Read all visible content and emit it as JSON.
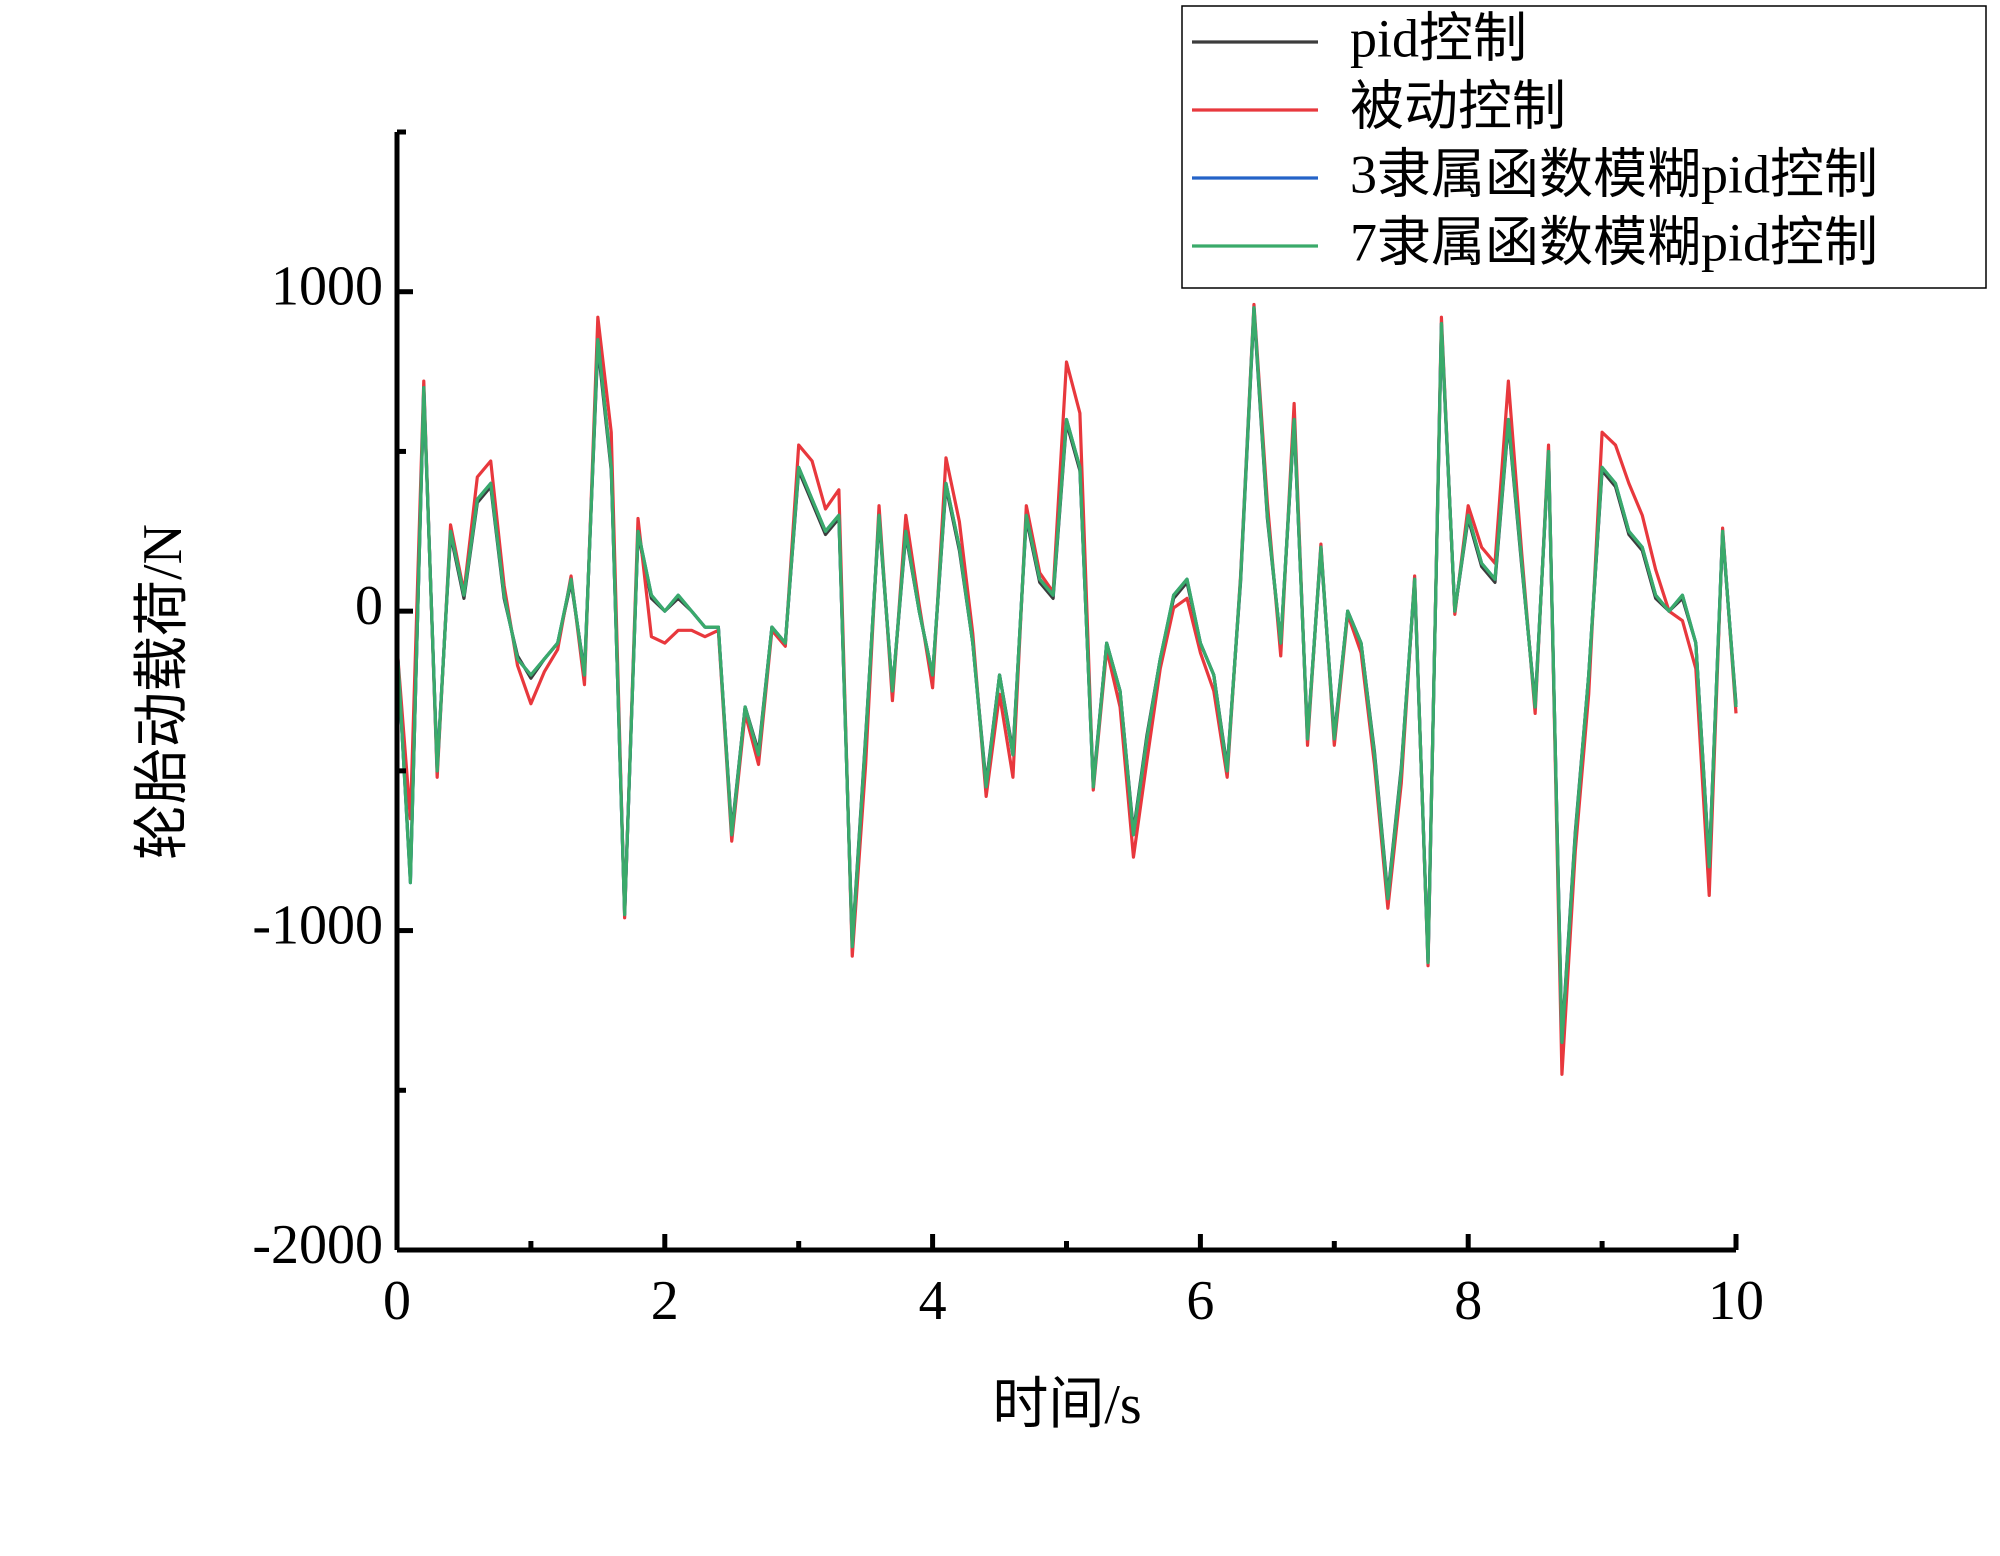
{
  "chart_data": {
    "type": "line",
    "x_label": "时间/s",
    "y_label": "轮胎动载荷/N",
    "x": [
      0,
      0.1,
      0.2,
      0.3,
      0.4,
      0.5,
      0.6,
      0.7,
      0.8,
      0.9,
      1,
      1.1,
      1.2,
      1.3,
      1.4,
      1.5,
      1.6,
      1.7,
      1.8,
      1.9,
      2,
      2.1,
      2.2,
      2.3,
      2.4,
      2.5,
      2.6,
      2.7,
      2.8,
      2.9,
      3,
      3.1,
      3.2,
      3.3,
      3.4,
      3.5,
      3.6,
      3.7,
      3.8,
      3.9,
      4,
      4.1,
      4.2,
      4.3,
      4.4,
      4.5,
      4.6,
      4.7,
      4.8,
      4.9,
      5,
      5.1,
      5.2,
      5.3,
      5.4,
      5.5,
      5.6,
      5.7,
      5.8,
      5.9,
      6,
      6.1,
      6.2,
      6.3,
      6.4,
      6.5,
      6.6,
      6.7,
      6.8,
      6.9,
      7,
      7.1,
      7.2,
      7.3,
      7.4,
      7.5,
      7.6,
      7.7,
      7.8,
      7.9,
      8,
      8.1,
      8.2,
      8.3,
      8.4,
      8.5,
      8.6,
      8.7,
      8.8,
      8.9,
      9,
      9.1,
      9.2,
      9.3,
      9.4,
      9.5,
      9.6,
      9.7,
      9.8,
      9.9,
      10
    ],
    "series": [
      {
        "name": "pid控制",
        "color": "#3c3c3c",
        "values": [
          -100,
          -840,
          690,
          -490,
          240,
          40,
          340,
          390,
          40,
          -140,
          -210,
          -150,
          -100,
          90,
          -190,
          830,
          440,
          -940,
          240,
          40,
          0,
          40,
          0,
          -50,
          -50,
          -690,
          -300,
          -440,
          -50,
          -100,
          440,
          340,
          240,
          290,
          -1040,
          -390,
          290,
          -250,
          240,
          0,
          -200,
          390,
          190,
          -100,
          -540,
          -200,
          -440,
          290,
          90,
          40,
          590,
          440,
          -540,
          -100,
          -250,
          -690,
          -390,
          -150,
          40,
          90,
          -100,
          -200,
          -490,
          90,
          940,
          290,
          -100,
          590,
          -390,
          190,
          -390,
          0,
          -100,
          -440,
          -890,
          -490,
          90,
          -1090,
          890,
          0,
          290,
          140,
          90,
          590,
          140,
          -290,
          490,
          -1340,
          -690,
          -200,
          440,
          390,
          240,
          190,
          40,
          0,
          40,
          -100,
          -790,
          240,
          -290
        ]
      },
      {
        "name": "被动控制",
        "color": "#e8383d",
        "values": [
          -110,
          -650,
          720,
          -520,
          270,
          60,
          420,
          470,
          80,
          -170,
          -290,
          -190,
          -120,
          110,
          -230,
          920,
          560,
          -960,
          290,
          -80,
          -100,
          -60,
          -60,
          -80,
          -60,
          -720,
          -320,
          -480,
          -60,
          -110,
          520,
          470,
          320,
          380,
          -1080,
          -480,
          330,
          -280,
          300,
          20,
          -240,
          480,
          280,
          -70,
          -580,
          -260,
          -520,
          330,
          120,
          60,
          780,
          620,
          -560,
          -120,
          -300,
          -770,
          -470,
          -180,
          10,
          40,
          -130,
          -250,
          -520,
          110,
          960,
          340,
          -140,
          650,
          -420,
          210,
          -420,
          -10,
          -130,
          -480,
          -930,
          -540,
          110,
          -1110,
          920,
          -10,
          330,
          200,
          150,
          720,
          180,
          -320,
          520,
          -1450,
          -750,
          -260,
          560,
          520,
          400,
          300,
          130,
          0,
          -30,
          -180,
          -890,
          260,
          -320
        ]
      },
      {
        "name": "3隶属函数模糊pid控制",
        "color": "#2563c8",
        "values": [
          -100,
          -850,
          700,
          -500,
          250,
          50,
          350,
          400,
          50,
          -150,
          -200,
          -150,
          -100,
          100,
          -200,
          850,
          450,
          -950,
          250,
          50,
          0,
          50,
          0,
          -50,
          -50,
          -700,
          -300,
          -450,
          -50,
          -100,
          450,
          350,
          250,
          300,
          -1050,
          -400,
          300,
          -250,
          250,
          0,
          -200,
          400,
          200,
          -100,
          -550,
          -200,
          -450,
          300,
          100,
          50,
          600,
          450,
          -550,
          -100,
          -250,
          -700,
          -400,
          -150,
          50,
          100,
          -100,
          -200,
          -500,
          100,
          950,
          300,
          -100,
          600,
          -400,
          200,
          -400,
          0,
          -100,
          -450,
          -900,
          -500,
          100,
          -1100,
          900,
          0,
          300,
          150,
          100,
          600,
          150,
          -300,
          500,
          -1350,
          -700,
          -200,
          450,
          400,
          250,
          200,
          50,
          0,
          50,
          -100,
          -800,
          250,
          -300
        ]
      },
      {
        "name": "7隶属函数模糊pid控制",
        "color": "#3aaa6a",
        "values": [
          -100,
          -850,
          700,
          -500,
          250,
          50,
          350,
          400,
          50,
          -150,
          -200,
          -150,
          -100,
          100,
          -200,
          850,
          450,
          -950,
          250,
          50,
          0,
          50,
          0,
          -50,
          -50,
          -700,
          -300,
          -450,
          -50,
          -100,
          450,
          350,
          250,
          300,
          -1050,
          -400,
          300,
          -250,
          250,
          0,
          -200,
          400,
          200,
          -100,
          -550,
          -200,
          -450,
          300,
          100,
          50,
          600,
          450,
          -550,
          -100,
          -250,
          -700,
          -400,
          -150,
          50,
          100,
          -100,
          -200,
          -500,
          100,
          950,
          300,
          -100,
          600,
          -400,
          200,
          -400,
          0,
          -100,
          -450,
          -900,
          -500,
          100,
          -1100,
          900,
          0,
          300,
          150,
          100,
          600,
          150,
          -300,
          500,
          -1350,
          -700,
          -200,
          450,
          400,
          250,
          200,
          50,
          0,
          50,
          -100,
          -800,
          250,
          -300
        ]
      }
    ],
    "xlim": [
      0,
      10
    ],
    "xticks": [
      0,
      2,
      4,
      6,
      8,
      10
    ],
    "x_minor_ticks": [
      1,
      3,
      5,
      7,
      9
    ],
    "ylim": [
      -2000,
      1500
    ],
    "yticks": [
      -2000,
      -1000,
      0,
      1000
    ],
    "y_minor_ticks": [
      -1500,
      -500,
      500,
      1500
    ],
    "grid": false,
    "legend": "upper right"
  }
}
